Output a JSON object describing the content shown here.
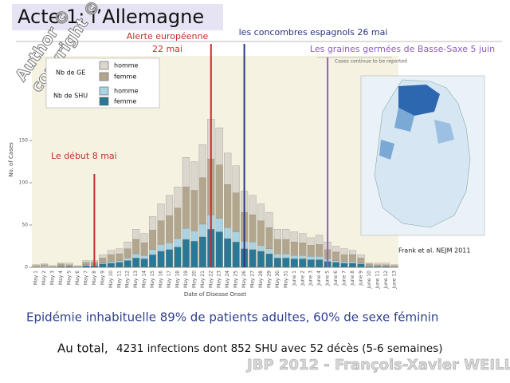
{
  "slide": {
    "title": "Acte 1: l’Allemagne",
    "watermark": [
      "Author ©",
      "copyright ©"
    ],
    "source": "Frank et al. NEJM 2011",
    "summary": "Epidémie inhabituelle 89% de patients adultes, 60% de sexe féminin",
    "total_lead": "Au total,",
    "total": "4231 infections dont 852 SHU avec 52 décès (5-6 semaines)",
    "footer": "JBP 2012 - François-Xavier WEILL"
  },
  "chart_data": {
    "type": "stacked-bar",
    "y_label": "No. of Cases",
    "x_label": "Date of Disease Onset",
    "annotations": [
      "Alerte européenne",
      "22 mai",
      "les concombres espagnols 26 mai",
      "Les graines germées de Basse-Saxe 5 juin",
      "Le début 8 mai",
      "Cases continue to be reported"
    ],
    "legend_groups": [
      "Nb de GE",
      "Nb de SHU"
    ],
    "categories": [
      "May 1",
      "May 2",
      "May 3",
      "May 4",
      "May 5",
      "May 6",
      "May 7",
      "May 8",
      "May 9",
      "May 10",
      "May 11",
      "May 12",
      "May 13",
      "May 14",
      "May 15",
      "May 16",
      "May 17",
      "May 18",
      "May 19",
      "May 20",
      "May 21",
      "May 22",
      "May 23",
      "May 24",
      "May 25",
      "May 26",
      "May 27",
      "May 28",
      "May 29",
      "May 30",
      "May 31",
      "June 1",
      "June 2",
      "June 3",
      "June 4",
      "June 5",
      "June 6",
      "June 7",
      "June 8",
      "June 9",
      "June 10",
      "June 11",
      "June 12",
      "June 13"
    ],
    "series": [
      {
        "name": "femme",
        "color": "#2b7896",
        "values": [
          0,
          0,
          0,
          1,
          1,
          0,
          2,
          2,
          4,
          5,
          6,
          8,
          11,
          10,
          15,
          19,
          21,
          24,
          33,
          31,
          36,
          45,
          42,
          34,
          30,
          22,
          21,
          19,
          16,
          11,
          11,
          10,
          10,
          9,
          9,
          7,
          6,
          5,
          5,
          4,
          1,
          1,
          1,
          0
        ]
      },
      {
        "name": "homme",
        "color": "#a9d2e2",
        "values": [
          0,
          1,
          0,
          0,
          0,
          0,
          1,
          1,
          1,
          2,
          2,
          3,
          5,
          4,
          6,
          8,
          8,
          10,
          13,
          12,
          15,
          17,
          16,
          13,
          12,
          9,
          9,
          7,
          6,
          5,
          5,
          4,
          4,
          4,
          4,
          3,
          2,
          2,
          2,
          1,
          1,
          0,
          0,
          0
        ]
      },
      {
        "name": "femme",
        "color": "#b3a68e",
        "values": [
          2,
          2,
          1,
          3,
          2,
          1,
          3,
          3,
          6,
          8,
          8,
          11,
          17,
          15,
          23,
          28,
          32,
          36,
          49,
          48,
          55,
          66,
          63,
          51,
          46,
          34,
          32,
          29,
          25,
          17,
          17,
          16,
          15,
          13,
          14,
          11,
          10,
          8,
          8,
          6,
          2,
          2,
          2,
          2
        ]
      },
      {
        "name": "homme",
        "color": "#dbd6ce",
        "values": [
          1,
          1,
          1,
          1,
          2,
          1,
          2,
          2,
          4,
          5,
          6,
          8,
          12,
          11,
          16,
          20,
          24,
          25,
          35,
          34,
          39,
          47,
          44,
          37,
          32,
          25,
          23,
          20,
          18,
          12,
          12,
          12,
          11,
          9,
          11,
          9,
          7,
          7,
          5,
          4,
          1,
          2,
          2,
          1
        ]
      }
    ],
    "ylim": [
      0,
      250
    ],
    "yticks": [
      0,
      50,
      100,
      150
    ],
    "grid": false
  }
}
